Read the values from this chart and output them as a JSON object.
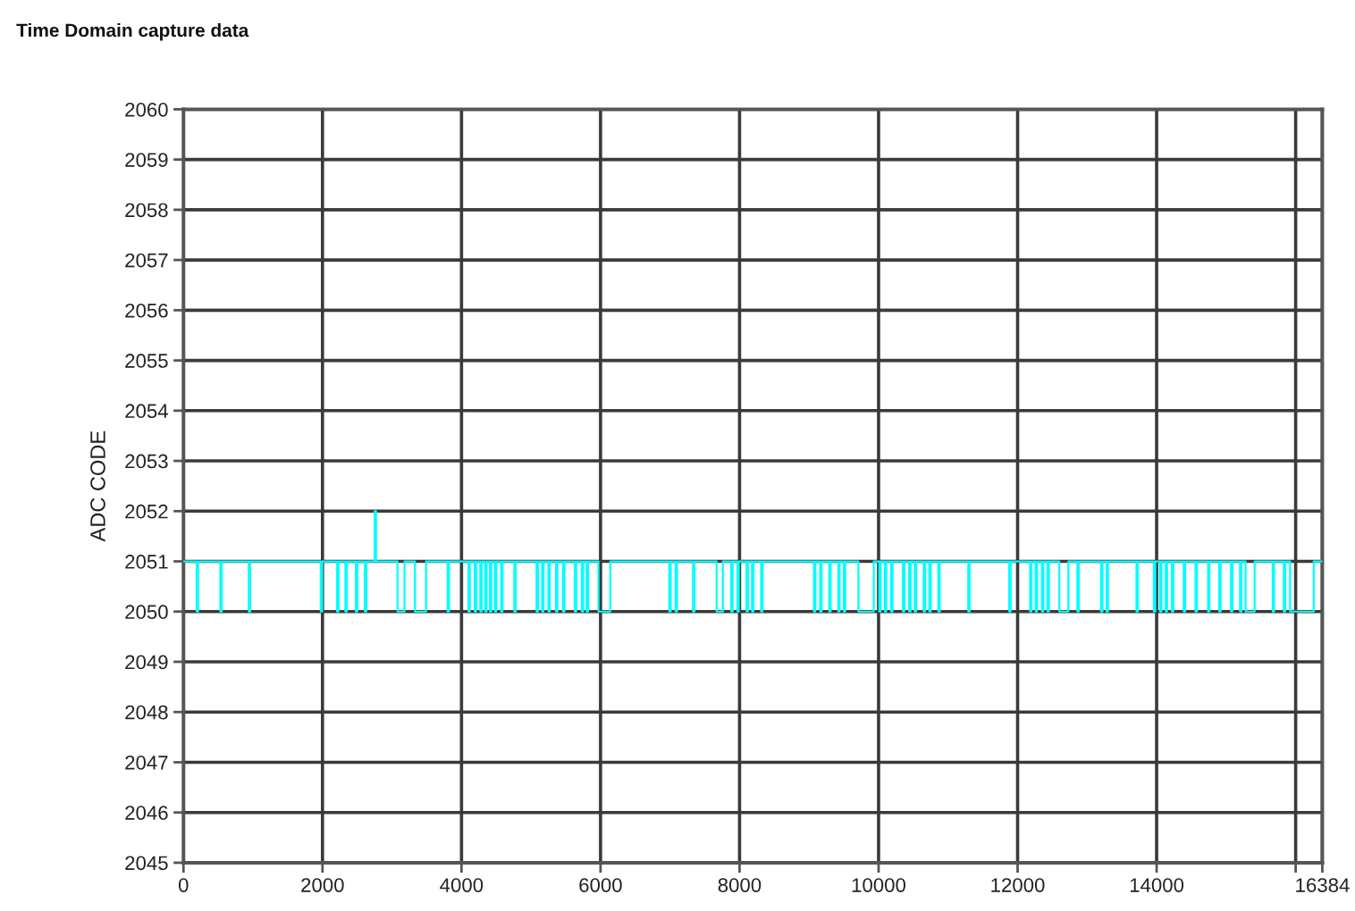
{
  "chart_data": {
    "type": "step",
    "title": "Time Domain capture data",
    "ylabel": "ADC CODE",
    "x": [
      0,
      190,
      210,
      530,
      550,
      940,
      960,
      1975,
      1995,
      2210,
      2230,
      2330,
      2350,
      2480,
      2500,
      2610,
      2630,
      2750,
      2770,
      3080,
      3180,
      3330,
      3490,
      3800,
      3820,
      4100,
      4120,
      4190,
      4210,
      4270,
      4290,
      4340,
      4360,
      4410,
      4430,
      4480,
      4500,
      4570,
      4590,
      4760,
      4780,
      5080,
      5100,
      5160,
      5180,
      5250,
      5270,
      5360,
      5380,
      5460,
      5480,
      5630,
      5650,
      5730,
      5750,
      5800,
      5820,
      5970,
      6140,
      6990,
      7010,
      7080,
      7100,
      7330,
      7350,
      7670,
      7760,
      7880,
      7900,
      7970,
      7990,
      8100,
      8120,
      8180,
      8200,
      8310,
      8330,
      9070,
      9090,
      9160,
      9180,
      9290,
      9310,
      9420,
      9440,
      9500,
      9520,
      9710,
      9930,
      10010,
      10030,
      10090,
      10110,
      10180,
      10200,
      10350,
      10370,
      10440,
      10460,
      10520,
      10540,
      10650,
      10670,
      10730,
      10750,
      10860,
      10880,
      11290,
      11310,
      11880,
      11900,
      12180,
      12200,
      12260,
      12280,
      12350,
      12370,
      12430,
      12450,
      12600,
      12730,
      12860,
      12880,
      13200,
      13220,
      13280,
      13300,
      13710,
      13730,
      13960,
      13980,
      14050,
      14070,
      14130,
      14150,
      14220,
      14240,
      14390,
      14410,
      14560,
      14580,
      14740,
      14760,
      14900,
      14920,
      15070,
      15090,
      15200,
      15220,
      15280,
      15410,
      15670,
      15690,
      15830,
      15850,
      15920,
      16260,
      16384
    ],
    "values": [
      2051,
      2050,
      2051,
      2050,
      2051,
      2050,
      2051,
      2050,
      2051,
      2050,
      2051,
      2050,
      2051,
      2050,
      2051,
      2050,
      2051,
      2052,
      2051,
      2050,
      2051,
      2050,
      2051,
      2050,
      2051,
      2050,
      2051,
      2050,
      2051,
      2050,
      2051,
      2050,
      2051,
      2050,
      2051,
      2050,
      2051,
      2050,
      2051,
      2050,
      2051,
      2050,
      2051,
      2050,
      2051,
      2050,
      2051,
      2050,
      2051,
      2050,
      2051,
      2050,
      2051,
      2050,
      2051,
      2050,
      2051,
      2050,
      2051,
      2050,
      2051,
      2050,
      2051,
      2050,
      2051,
      2050,
      2051,
      2050,
      2051,
      2050,
      2051,
      2050,
      2051,
      2050,
      2051,
      2050,
      2051,
      2050,
      2051,
      2050,
      2051,
      2050,
      2051,
      2050,
      2051,
      2050,
      2051,
      2050,
      2051,
      2050,
      2051,
      2050,
      2051,
      2050,
      2051,
      2050,
      2051,
      2050,
      2051,
      2050,
      2051,
      2050,
      2051,
      2050,
      2051,
      2050,
      2051,
      2050,
      2051,
      2050,
      2051,
      2050,
      2051,
      2050,
      2051,
      2050,
      2051,
      2050,
      2051,
      2050,
      2051,
      2050,
      2051,
      2050,
      2051,
      2050,
      2051,
      2050,
      2051,
      2050,
      2051,
      2050,
      2051,
      2050,
      2051,
      2050,
      2051,
      2050,
      2051,
      2050,
      2051,
      2050,
      2051,
      2050,
      2051,
      2050,
      2051,
      2050,
      2051,
      2050,
      2051,
      2050,
      2051,
      2050,
      2051,
      2050,
      2051,
      2051
    ],
    "color": "#00ffff",
    "line_style": "solid",
    "xlim": [
      0,
      16384
    ],
    "xticks": [
      0,
      2000,
      4000,
      6000,
      8000,
      10000,
      12000,
      14000,
      {
        "value": 16000,
        "label": null
      },
      16384
    ],
    "ylim": [
      2045,
      2060
    ],
    "yticks": [
      2045,
      2046,
      2047,
      2048,
      2049,
      2050,
      2051,
      2052,
      2053,
      2054,
      2055,
      2056,
      2057,
      2058,
      2059,
      2060
    ],
    "grid": true
  }
}
